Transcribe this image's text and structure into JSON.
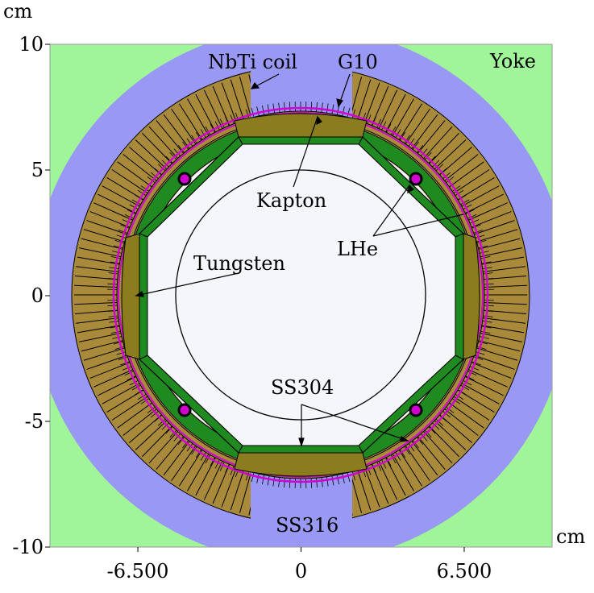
{
  "axes": {
    "x_unit": "cm",
    "y_unit": "cm",
    "x_ticks": [
      {
        "value": -6.5,
        "label": "-6.500"
      },
      {
        "value": 0,
        "label": "0"
      },
      {
        "value": 6.5,
        "label": "6.500"
      }
    ],
    "y_ticks": [
      {
        "value": 10,
        "label": "10"
      },
      {
        "value": 5,
        "label": "5"
      },
      {
        "value": 0,
        "label": "0"
      },
      {
        "value": -5,
        "label": "-5"
      },
      {
        "value": -10,
        "label": "-10"
      }
    ],
    "x_range": [
      -10,
      10
    ],
    "y_range": [
      -10,
      10
    ]
  },
  "labels": {
    "nbti": "NbTi coil",
    "g10": "G10",
    "yoke": "Yoke",
    "kapton": "Kapton",
    "lhe": "LHe",
    "tungsten": "Tungsten",
    "ss304": "SS304",
    "ss316": "SS316"
  },
  "colors": {
    "yoke": "#a0f599",
    "ss316": "#9999f5",
    "coil": "#a88a3a",
    "tungsten": "#8b7d1e",
    "g10": "#1f8a1f",
    "kapton": "#d000d0",
    "bore": "#f4f6fb"
  }
}
